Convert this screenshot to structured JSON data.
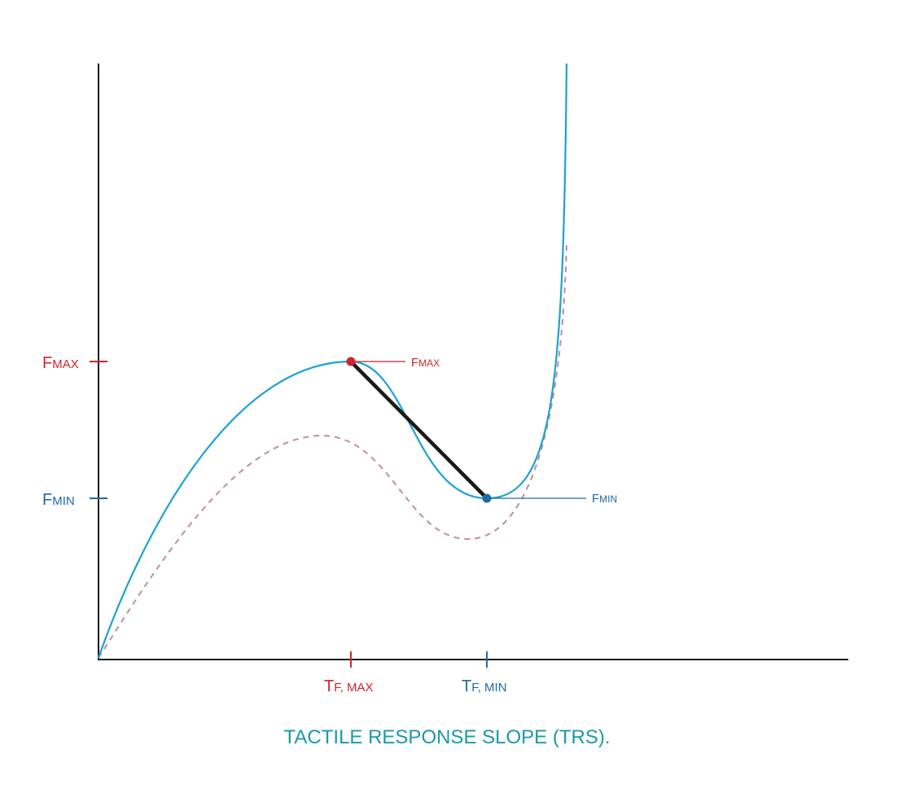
{
  "colors": {
    "max": "#d1232f",
    "min": "#1d6aa5",
    "solid_curve": "#1aa3d1",
    "dashed_curve": "#c08aa8",
    "chord": "#1a1a1a",
    "title": "#1a9aa8",
    "axis": "#1a1a1a"
  },
  "axis_labels": {
    "fmax_axis": {
      "main": "F",
      "sub": "MAX"
    },
    "fmin_axis": {
      "main": "F",
      "sub": "MIN"
    },
    "tfmax_axis": {
      "main": "T",
      "sub": "F, MAX"
    },
    "tfmin_axis": {
      "main": "T",
      "sub": "F, MIN"
    }
  },
  "annotations": {
    "fmax_point": {
      "main": "F",
      "sub": "MAX"
    },
    "fmin_point": {
      "main": "F",
      "sub": "MIN"
    }
  },
  "title": "TACTILE RESPONSE SLOPE (TRS)."
}
